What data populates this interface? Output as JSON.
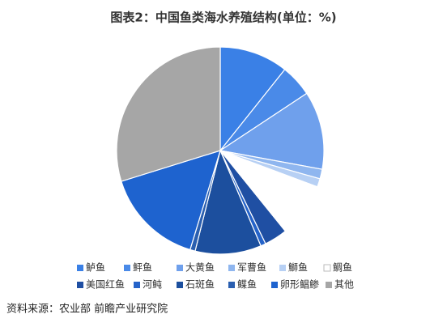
{
  "chart_data": {
    "type": "pie",
    "title": "图表2：中国鱼类海水养殖结构(单位：%)",
    "categories": [
      "鲈鱼",
      "鲆鱼",
      "大黄鱼",
      "军曹鱼",
      "鰤鱼",
      "鲷鱼",
      "美国红鱼",
      "河鲀",
      "石斑鱼",
      "鲽鱼",
      "卵形鲳鲹",
      "其他"
    ],
    "values": [
      10.7,
      5.0,
      12.2,
      1.5,
      1.3,
      8.5,
      3.6,
      0.8,
      10.3,
      0.8,
      15.5,
      29.8
    ],
    "colors": [
      "#3a80e6",
      "#4a8ae8",
      "#6fa0ec",
      "#8fb6ef",
      "#b7d0f4",
      "#ffffff",
      "#1f4fa3",
      "#2563c9",
      "#1c4f9e",
      "#2a5fb0",
      "#1e63cf",
      "#a6a6a6"
    ],
    "source": "资料来源：农业部 前瞻产业研究院"
  }
}
